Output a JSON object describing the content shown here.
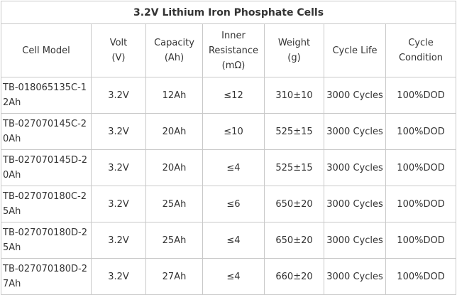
{
  "title": "3.2V Lithium Iron Phosphate Cells",
  "headers": [
    {
      "lines": [
        "Cell Model"
      ]
    },
    {
      "lines": [
        "Volt",
        "(V)"
      ]
    },
    {
      "lines": [
        "Capacity",
        "(Ah)"
      ]
    },
    {
      "lines": [
        "Inner",
        "Resistance",
        "(mΩ)"
      ]
    },
    {
      "lines": [
        "Weight",
        "(g)"
      ]
    },
    {
      "lines": [
        "Cycle Life"
      ]
    },
    {
      "lines": [
        "Cycle",
        "Condition"
      ]
    }
  ],
  "rows": [
    {
      "model": "TB-018065135C-12Ah",
      "volt": "3.2V",
      "capacity": "12Ah",
      "resistance": "≤12",
      "weight": "310±10",
      "cycle_life": "3000 Cycles",
      "cycle_condition": "100%DOD"
    },
    {
      "model": "TB-027070145C-20Ah",
      "volt": "3.2V",
      "capacity": "20Ah",
      "resistance": "≤10",
      "weight": "525±15",
      "cycle_life": "3000 Cycles",
      "cycle_condition": "100%DOD"
    },
    {
      "model": "TB-027070145D-20Ah",
      "volt": "3.2V",
      "capacity": "20Ah",
      "resistance": "≤4",
      "weight": "525±15",
      "cycle_life": "3000 Cycles",
      "cycle_condition": "100%DOD"
    },
    {
      "model": "TB-027070180C-25Ah",
      "volt": "3.2V",
      "capacity": "25Ah",
      "resistance": "≤6",
      "weight": "650±20",
      "cycle_life": "3000 Cycles",
      "cycle_condition": "100%DOD"
    },
    {
      "model": "TB-027070180D-25Ah",
      "volt": "3.2V",
      "capacity": "25Ah",
      "resistance": "≤4",
      "weight": "650±20",
      "cycle_life": "3000 Cycles",
      "cycle_condition": "100%DOD"
    },
    {
      "model": "TB-027070180D-27Ah",
      "volt": "3.2V",
      "capacity": "27Ah",
      "resistance": "≤4",
      "weight": "660±20",
      "cycle_life": "3000 Cycles",
      "cycle_condition": "100%DOD"
    }
  ]
}
